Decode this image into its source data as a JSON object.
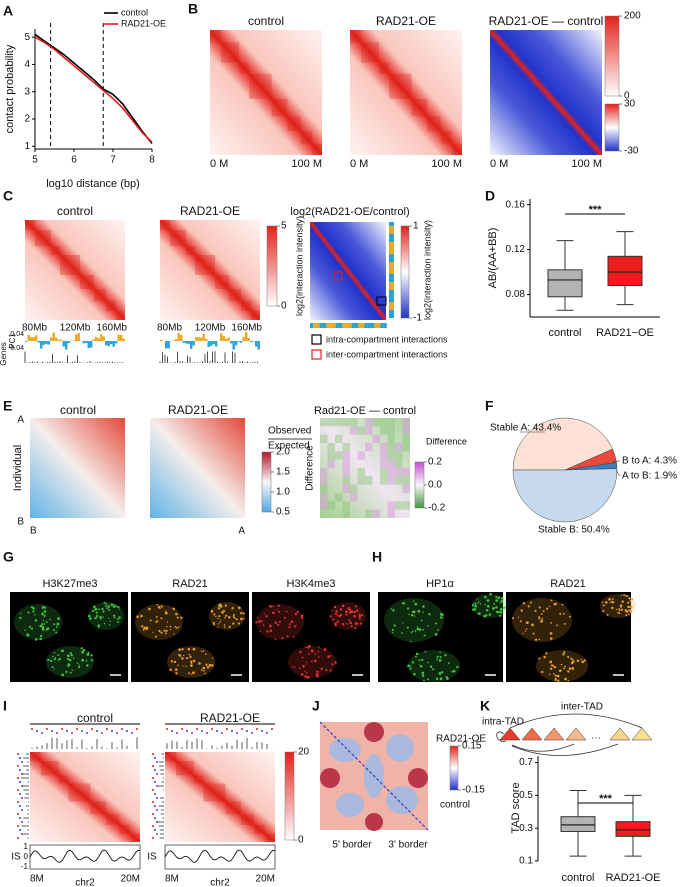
{
  "chart_data": [
    {
      "label": "A",
      "type": "line",
      "xlabel": "log10 distance (bp)",
      "ylabel": "contact probability",
      "xlim": [
        5,
        8
      ],
      "xticks": [
        5,
        6,
        7,
        8
      ],
      "ylim": [
        0.9,
        5.3
      ],
      "yticks": [
        1,
        2,
        3,
        4,
        5
      ],
      "vlines": [
        5.4,
        6.75
      ],
      "legend": "upper right",
      "x": [
        5,
        5.25,
        5.5,
        5.75,
        6,
        6.25,
        6.5,
        6.75,
        7,
        7.25,
        7.5,
        7.75,
        8
      ],
      "series": [
        {
          "name": "control",
          "color": "#000000",
          "values": [
            5.1,
            4.85,
            4.6,
            4.35,
            4.05,
            3.75,
            3.45,
            3.1,
            2.9,
            2.55,
            2.05,
            1.55,
            1.1
          ]
        },
        {
          "name": "RAD21-OE",
          "color": "#e41a1c",
          "values": [
            5.0,
            4.8,
            4.55,
            4.25,
            3.95,
            3.65,
            3.35,
            3.05,
            2.75,
            2.4,
            1.95,
            1.5,
            1.15
          ]
        }
      ]
    },
    {
      "label": "B",
      "type": "heatmap",
      "titles": [
        "control",
        "RAD21-OE",
        "RAD21-OE — control"
      ],
      "axis_labels": [
        "0 M",
        "100 M"
      ],
      "colorbars": [
        {
          "ticks": [
            200,
            0
          ]
        },
        {
          "ticks": [
            30,
            -30
          ]
        }
      ]
    },
    {
      "label": "C",
      "type": "heatmap",
      "titles": [
        "control",
        "RAD21-OE",
        "log2(RAD21-OE/control)"
      ],
      "xticks": [
        "80Mb",
        "120Mb",
        "160Mb"
      ],
      "track_labels": [
        "PC1",
        "Genes"
      ],
      "track_ticks": [
        0.04,
        -0.04
      ],
      "colorbars": [
        {
          "ticks": [
            5,
            0
          ],
          "label": "log2(interaction intensity)"
        },
        {
          "ticks": [
            1,
            -1
          ],
          "label": "log2(interaction intensity)"
        }
      ],
      "legend": [
        "intra-compartment interactions",
        "inter-compartment interactions"
      ]
    },
    {
      "label": "D",
      "type": "box",
      "ylabel": "AB/(AA+BB)",
      "categories": [
        "control",
        "RAD21−OE"
      ],
      "ylim": [
        0.06,
        0.165
      ],
      "yticks": [
        0.08,
        0.12,
        0.16
      ],
      "boxes": [
        {
          "min": 0.066,
          "q1": 0.078,
          "median": 0.093,
          "q3": 0.102,
          "max": 0.128
        },
        {
          "min": 0.071,
          "q1": 0.088,
          "median": 0.1,
          "q3": 0.114,
          "max": 0.136
        }
      ],
      "colors": [
        "#b3b3b3",
        "#ee1c1c"
      ],
      "significance": "***"
    },
    {
      "label": "E",
      "type": "heatmap",
      "titles": [
        "control",
        "RAD21-OE",
        "Rad21-OE — control"
      ],
      "ylabel": "Individual",
      "corner_labels": [
        "A",
        "B",
        "B",
        "A"
      ],
      "diff_ylabel": "Difference",
      "colorbars": [
        {
          "label": [
            "Observed",
            "Expected"
          ],
          "ticks": [
            {
              "value": 2,
              "label": "2.0"
            },
            1.5,
            {
              "value": 1,
              "label": "1.0"
            },
            0.5
          ]
        },
        {
          "label": "Difference",
          "ticks": [
            0.2,
            {
              "value": 0,
              "label": "0.0"
            },
            -0.2
          ]
        }
      ]
    },
    {
      "label": "F",
      "type": "pie",
      "values": [
        43.4,
        4.3,
        1.9,
        50.4
      ],
      "value_labels": [
        "Stable A: 43.4%",
        "B to A: 4.3%",
        "A to B: 1.9%",
        "Stable B: 50.4%"
      ],
      "colors": [
        "#fde0d6",
        "#e84a3c",
        "#3a7fc1",
        "#c6d9ee"
      ]
    },
    {
      "label": "G",
      "type": "image",
      "titles": [
        "H3K27me3",
        "RAD21",
        "H3K4me3"
      ]
    },
    {
      "label": "H",
      "type": "image",
      "titles": [
        "HP1α",
        "RAD21"
      ]
    },
    {
      "label": "I",
      "type": "heatmap",
      "titles": [
        "control",
        "RAD21-OE"
      ],
      "colorbars": [
        {
          "ticks": [
            20,
            0
          ]
        }
      ],
      "track_label": "IS",
      "track_ticks": [
        1,
        0,
        -1
      ],
      "axis_labels": [
        "8M",
        "20M"
      ],
      "xlabel": "chr2"
    },
    {
      "label": "J",
      "type": "heatmap",
      "colorbars": [
        {
          "ticks": [
            0.15,
            -0.15
          ]
        }
      ],
      "legend": [
        "RAD21-OE",
        "control"
      ],
      "axis_labels": [
        "5' border",
        "3' border"
      ]
    },
    {
      "label": "K",
      "type": "box",
      "diagram": [
        "intra-TAD",
        "inter-TAD"
      ],
      "ylabel": "TAD score",
      "categories": [
        "control",
        "RAD21-OE"
      ],
      "ylim": [
        0.1,
        0.74
      ],
      "yticks": [
        0.1,
        0.3,
        0.5,
        0.7
      ],
      "boxes": [
        {
          "min": 0.13,
          "q1": 0.28,
          "median": 0.32,
          "q3": 0.37,
          "max": 0.53
        },
        {
          "min": 0.13,
          "q1": 0.25,
          "median": 0.29,
          "q3": 0.34,
          "max": 0.5
        }
      ],
      "colors": [
        "#b3b3b3",
        "#ee1c1c"
      ],
      "significance": "***"
    }
  ]
}
